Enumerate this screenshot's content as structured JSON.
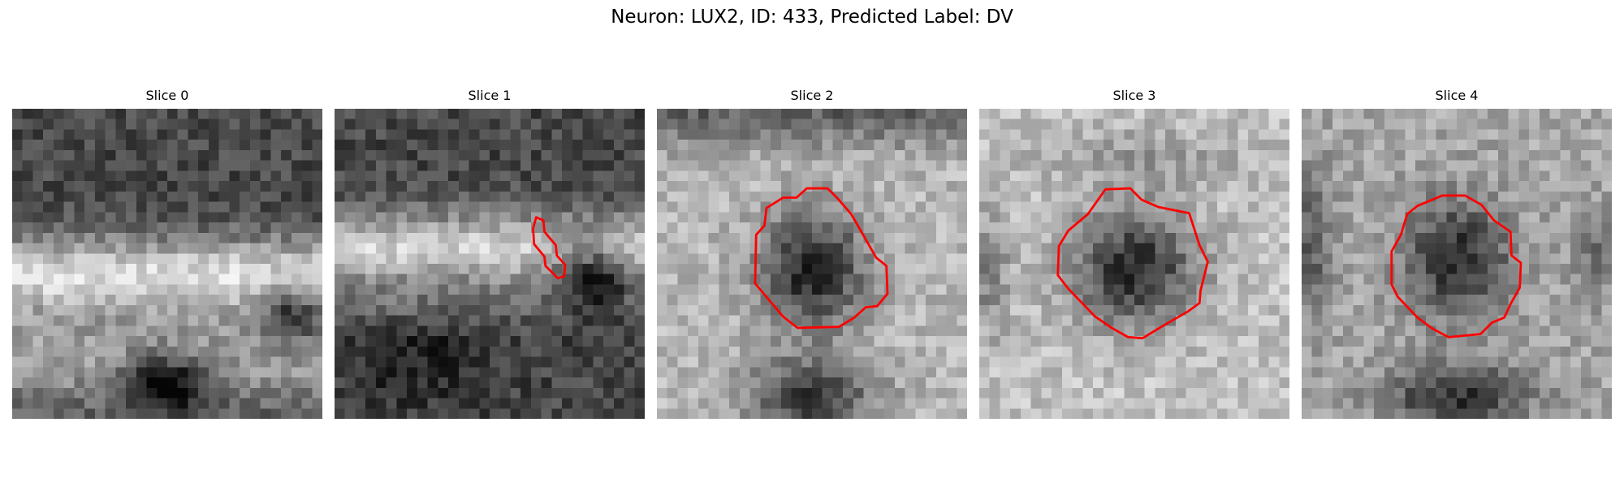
{
  "title": "Neuron: LUX2, ID: 433, Predicted Label: DV",
  "panels": [
    {
      "label": "Slice 0"
    },
    {
      "label": "Slice 1"
    },
    {
      "label": "Slice 2"
    },
    {
      "label": "Slice 3"
    },
    {
      "label": "Slice 4"
    }
  ],
  "colors": {
    "contour": "#ff0000",
    "background": "#ffffff"
  },
  "image": {
    "grid": 30,
    "colormap": "grayscale"
  }
}
